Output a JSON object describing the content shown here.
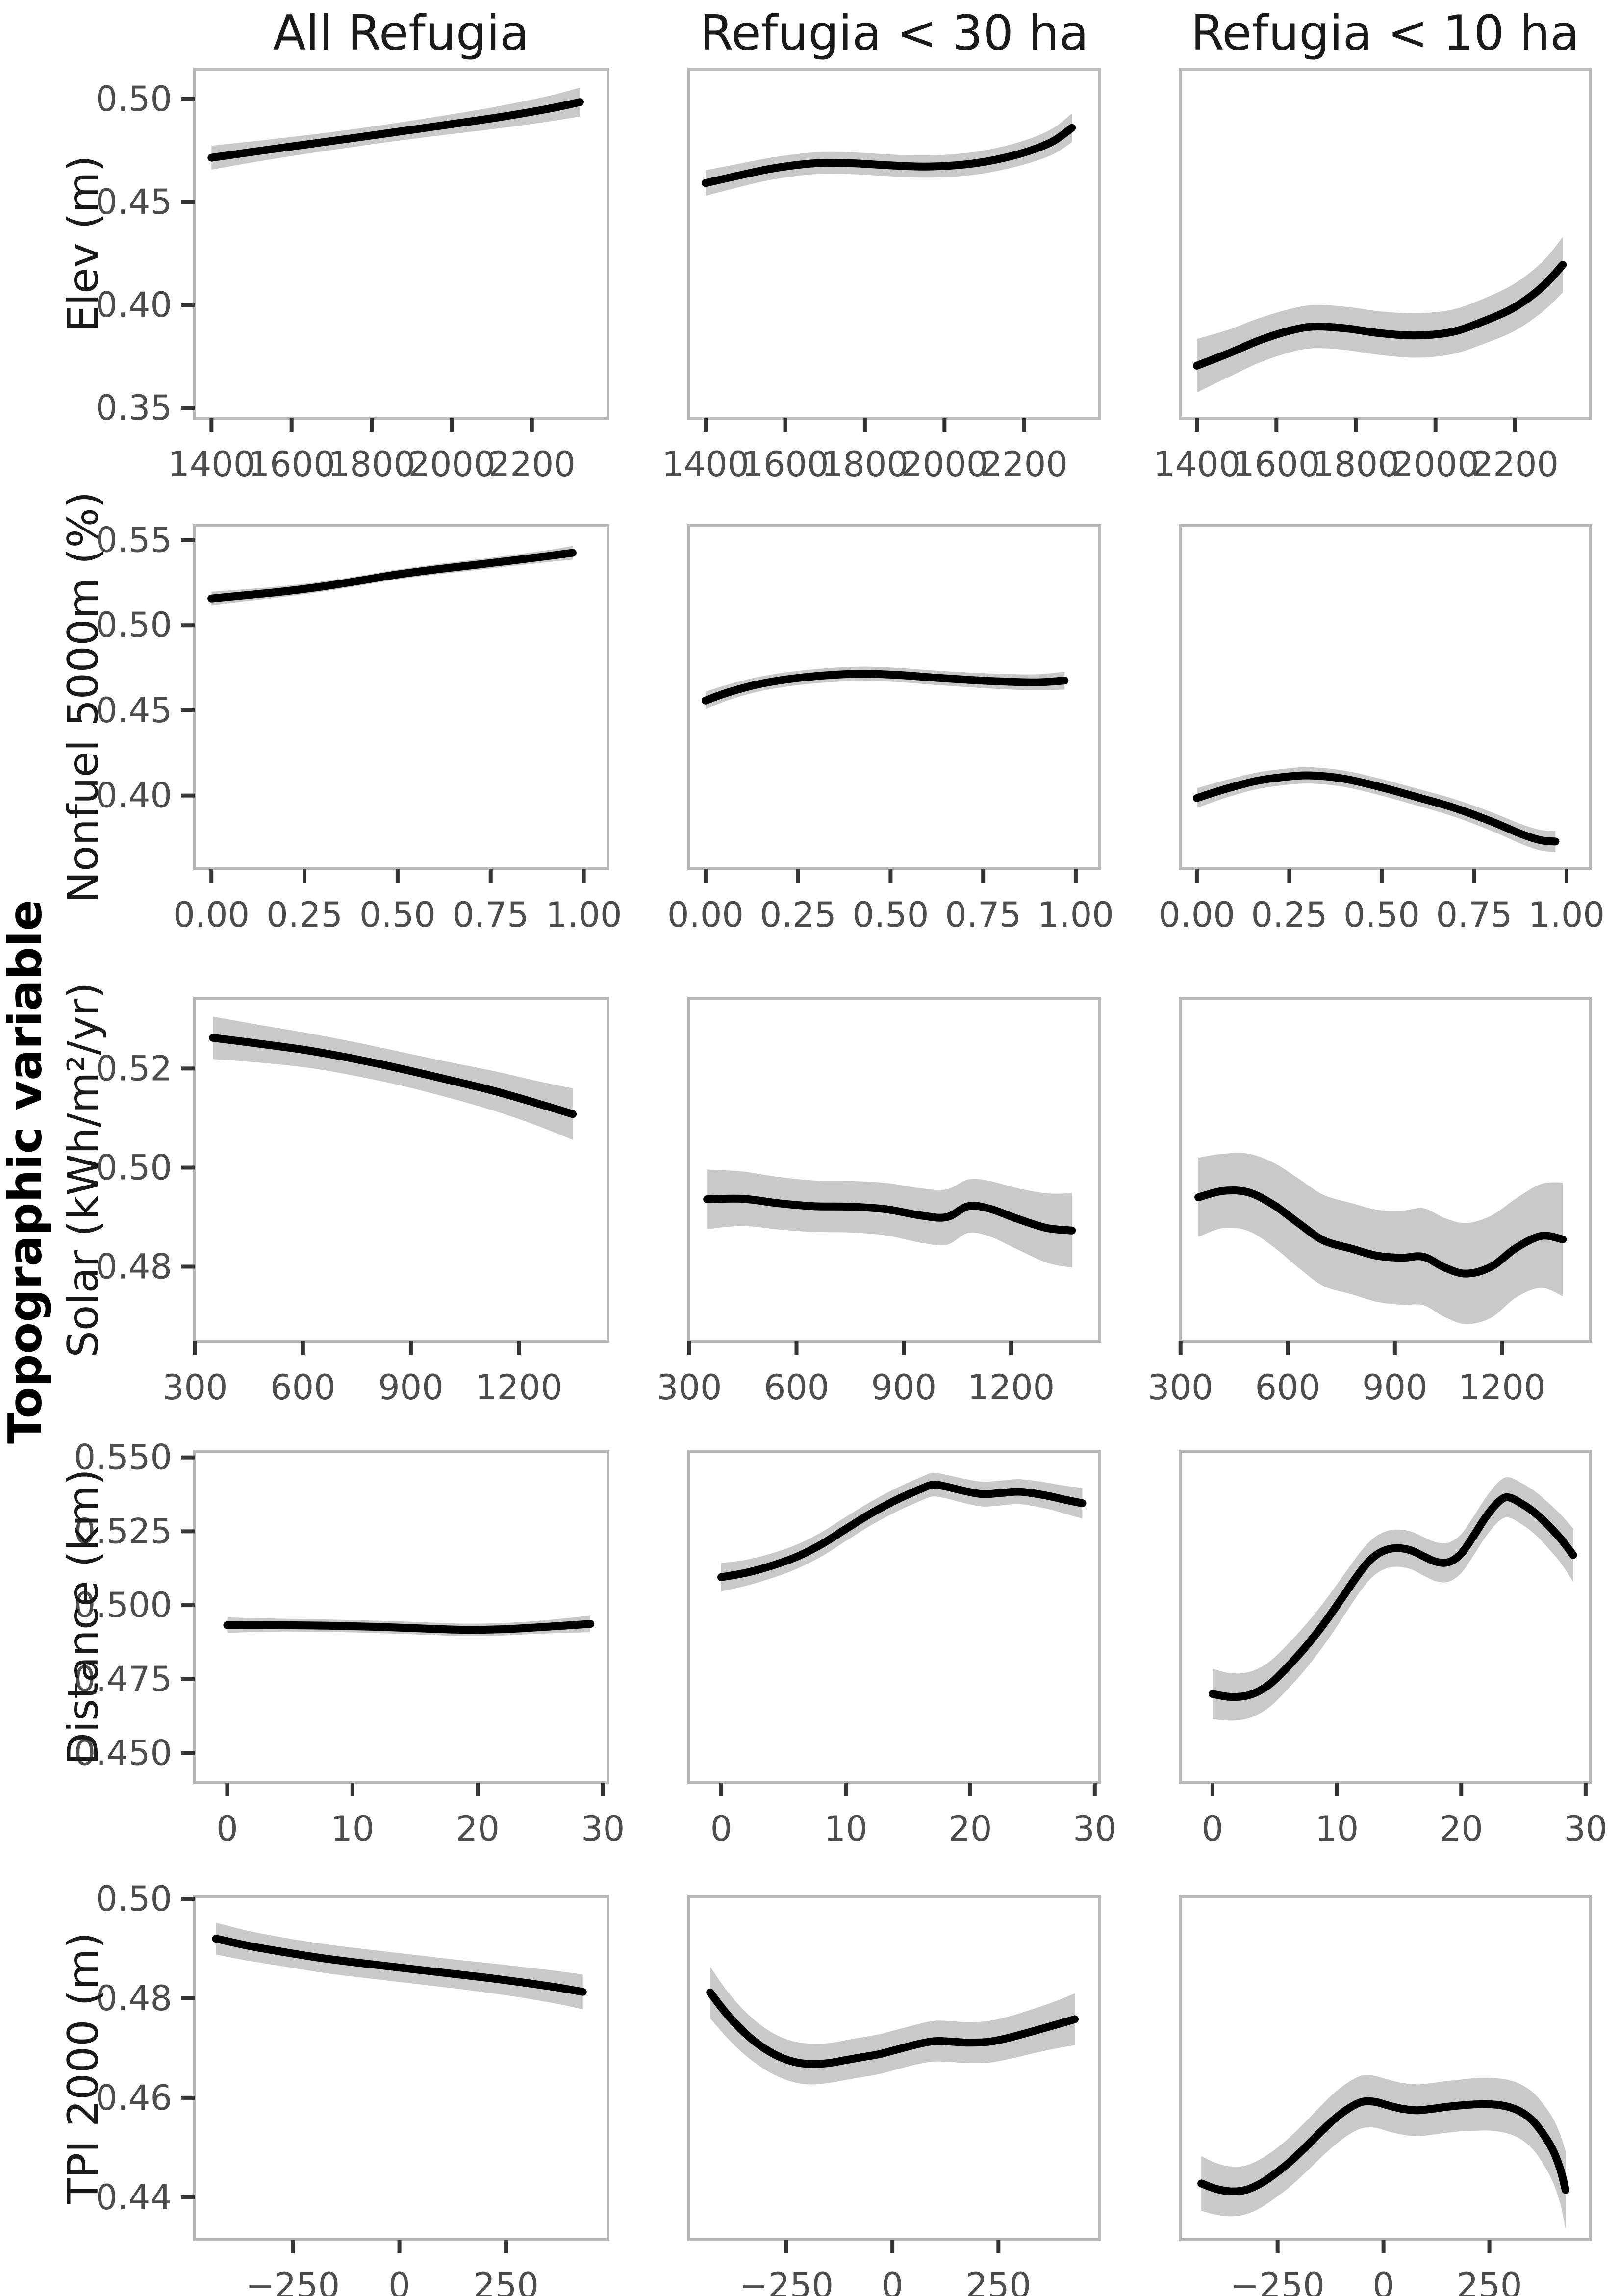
{
  "figure": {
    "col_titles": [
      "All Refugia",
      "Refugia < 30 ha",
      "Refugia < 10 ha"
    ],
    "outer_ylabel": "Topographic variable",
    "colors": {
      "line": "#000000",
      "ci_band": "#c9c9c9",
      "panel_border": "#b8b8b8",
      "tick_mark": "#333333",
      "tick_label": "#4d4d4d",
      "title": "#1a1a1a",
      "background": "#ffffff"
    }
  },
  "chart_data": [
    {
      "type": "line",
      "ylabel": "Elev (m)",
      "ylim": [
        0.345,
        0.5145
      ],
      "ytick_values": [
        0.35,
        0.4,
        0.45,
        0.5
      ],
      "ytick_labels": [
        "0.35",
        "0.40",
        "0.45",
        "0.50"
      ],
      "xlim": [
        1358,
        2390
      ],
      "xtick_values": [
        1400,
        1600,
        1800,
        2000,
        2200
      ],
      "xtick_labels": [
        "1400",
        "1600",
        "1800",
        "2000",
        "2200"
      ],
      "panels": [
        {
          "column": "All Refugia",
          "x": [
            1400,
            1520,
            1640,
            1760,
            1880,
            2000,
            2120,
            2240,
            2320
          ],
          "y": [
            0.4715,
            0.4748,
            0.478,
            0.4812,
            0.4845,
            0.4878,
            0.4912,
            0.4952,
            0.4985
          ],
          "ci": [
            0.0058,
            0.005,
            0.0045,
            0.0043,
            0.0044,
            0.0048,
            0.0054,
            0.0062,
            0.007
          ]
        },
        {
          "column": "Refugia < 30 ha",
          "x": [
            1400,
            1480,
            1560,
            1640,
            1700,
            1780,
            1860,
            1950,
            2040,
            2120,
            2200,
            2270,
            2320
          ],
          "y": [
            0.4592,
            0.4627,
            0.466,
            0.4682,
            0.469,
            0.4687,
            0.4678,
            0.4672,
            0.468,
            0.4702,
            0.474,
            0.4792,
            0.486
          ],
          "ci": [
            0.0062,
            0.0057,
            0.0054,
            0.0053,
            0.0053,
            0.0053,
            0.0053,
            0.0054,
            0.0055,
            0.0056,
            0.0058,
            0.0063,
            0.007
          ]
        },
        {
          "column": "Refugia < 10 ha",
          "x": [
            1400,
            1480,
            1560,
            1640,
            1700,
            1780,
            1860,
            1950,
            2040,
            2120,
            2200,
            2270,
            2320
          ],
          "y": [
            0.3705,
            0.3765,
            0.383,
            0.3878,
            0.3895,
            0.3885,
            0.3863,
            0.3852,
            0.3868,
            0.392,
            0.399,
            0.409,
            0.4195
          ],
          "ci": [
            0.013,
            0.0115,
            0.0108,
            0.0105,
            0.0105,
            0.0105,
            0.0106,
            0.0108,
            0.0108,
            0.011,
            0.0115,
            0.0122,
            0.0135
          ]
        }
      ]
    },
    {
      "type": "line",
      "ylabel": "Nonfuel 5000m (%)",
      "ylim": [
        0.357,
        0.5585
      ],
      "ytick_values": [
        0.4,
        0.45,
        0.5,
        0.55
      ],
      "ytick_labels": [
        "0.40",
        "0.45",
        "0.50",
        "0.55"
      ],
      "xlim": [
        -0.045,
        1.065
      ],
      "xtick_values": [
        0.0,
        0.25,
        0.5,
        0.75,
        1.0
      ],
      "xtick_labels": [
        "0.00",
        "0.25",
        "0.50",
        "0.75",
        "1.00"
      ],
      "panels": [
        {
          "column": "All Refugia",
          "x": [
            0,
            0.1,
            0.2,
            0.3,
            0.4,
            0.5,
            0.6,
            0.7,
            0.8,
            0.9,
            0.97
          ],
          "y": [
            0.5157,
            0.5178,
            0.52,
            0.5228,
            0.5262,
            0.5298,
            0.5327,
            0.5352,
            0.5378,
            0.5405,
            0.5425
          ],
          "ci": [
            0.004,
            0.0035,
            0.0032,
            0.003,
            0.0029,
            0.0029,
            0.003,
            0.0031,
            0.0032,
            0.0035,
            0.004
          ]
        },
        {
          "column": "Refugia < 30 ha",
          "x": [
            0,
            0.06,
            0.14,
            0.22,
            0.32,
            0.42,
            0.52,
            0.62,
            0.72,
            0.82,
            0.9,
            0.97
          ],
          "y": [
            0.4558,
            0.4605,
            0.4652,
            0.4682,
            0.4705,
            0.4715,
            0.4708,
            0.4692,
            0.4678,
            0.4668,
            0.4665,
            0.4675
          ],
          "ci": [
            0.0052,
            0.0046,
            0.0043,
            0.0042,
            0.0042,
            0.0042,
            0.0042,
            0.0042,
            0.0043,
            0.0045,
            0.0047,
            0.0052
          ]
        },
        {
          "column": "Refugia < 10 ha",
          "x": [
            0,
            0.08,
            0.16,
            0.24,
            0.31,
            0.4,
            0.5,
            0.6,
            0.7,
            0.8,
            0.88,
            0.93,
            0.97
          ],
          "y": [
            0.3985,
            0.404,
            0.4085,
            0.411,
            0.4118,
            0.4098,
            0.4048,
            0.3988,
            0.3925,
            0.3845,
            0.3772,
            0.3738,
            0.373
          ],
          "ci": [
            0.0058,
            0.0052,
            0.0049,
            0.0048,
            0.0048,
            0.0048,
            0.0049,
            0.005,
            0.0052,
            0.0055,
            0.0058,
            0.006,
            0.0062
          ]
        }
      ]
    },
    {
      "type": "line",
      "ylabel": "Solar (kWh/m²/yr)",
      "ylim": [
        0.4649,
        0.5342
      ],
      "ytick_values": [
        0.48,
        0.5,
        0.52
      ],
      "ytick_labels": [
        "0.48",
        "0.50",
        "0.52"
      ],
      "xlim": [
        299,
        1448
      ],
      "xtick_values": [
        300,
        600,
        900,
        1200
      ],
      "xtick_labels": [
        "300",
        "600",
        "900",
        "1200"
      ],
      "panels": [
        {
          "column": "All Refugia",
          "x": [
            350,
            480,
            610,
            740,
            870,
            1000,
            1130,
            1250,
            1350
          ],
          "y": [
            0.5262,
            0.525,
            0.5237,
            0.522,
            0.52,
            0.5178,
            0.5155,
            0.513,
            0.5108
          ],
          "ci": [
            0.0043,
            0.0038,
            0.0035,
            0.0034,
            0.0034,
            0.0036,
            0.004,
            0.0045,
            0.0052
          ]
        },
        {
          "column": "Refugia < 30 ha",
          "x": [
            350,
            450,
            550,
            650,
            750,
            850,
            950,
            1020,
            1080,
            1140,
            1220,
            1300,
            1370
          ],
          "y": [
            0.4936,
            0.4937,
            0.4928,
            0.4922,
            0.4921,
            0.4916,
            0.4903,
            0.49,
            0.4922,
            0.4917,
            0.4896,
            0.4878,
            0.4873
          ],
          "ci": [
            0.006,
            0.0055,
            0.0053,
            0.0052,
            0.0052,
            0.0053,
            0.0055,
            0.0056,
            0.0054,
            0.0056,
            0.0062,
            0.007,
            0.0075
          ]
        },
        {
          "column": "Refugia < 10 ha",
          "x": [
            350,
            420,
            490,
            560,
            630,
            700,
            780,
            850,
            920,
            980,
            1040,
            1100,
            1170,
            1240,
            1310,
            1370
          ],
          "y": [
            0.494,
            0.4953,
            0.495,
            0.4925,
            0.4888,
            0.4853,
            0.4836,
            0.4822,
            0.4818,
            0.482,
            0.4798,
            0.4786,
            0.48,
            0.4838,
            0.4862,
            0.4855
          ],
          "ci": [
            0.008,
            0.0075,
            0.0078,
            0.0085,
            0.009,
            0.0092,
            0.0092,
            0.0093,
            0.0095,
            0.0098,
            0.01,
            0.0102,
            0.0103,
            0.01,
            0.0105,
            0.0115
          ]
        }
      ]
    },
    {
      "type": "line",
      "ylabel": "Distance (km)",
      "ylim": [
        0.44,
        0.5521
      ],
      "ytick_values": [
        0.45,
        0.475,
        0.5,
        0.525,
        0.55
      ],
      "ytick_labels": [
        "0.450",
        "0.475",
        "0.500",
        "0.525",
        "0.550"
      ],
      "xlim": [
        -2.6,
        30.4
      ],
      "xtick_values": [
        0,
        10,
        20,
        30
      ],
      "xtick_labels": [
        "0",
        "10",
        "20",
        "30"
      ],
      "panels": [
        {
          "column": "All Refugia",
          "x": [
            0,
            4,
            8,
            12,
            16,
            19,
            22,
            25,
            29
          ],
          "y": [
            0.4933,
            0.4933,
            0.4931,
            0.4927,
            0.4921,
            0.4917,
            0.4919,
            0.4926,
            0.4937
          ],
          "ci": [
            0.0026,
            0.0022,
            0.0021,
            0.0021,
            0.0021,
            0.0021,
            0.0021,
            0.0022,
            0.0028
          ]
        },
        {
          "column": "Refugia < 30 ha",
          "x": [
            0,
            2,
            4,
            6,
            8,
            10,
            12,
            14,
            16,
            17,
            18,
            19.5,
            21,
            22.5,
            24,
            26,
            27.5,
            29
          ],
          "y": [
            0.5095,
            0.511,
            0.5133,
            0.5163,
            0.5205,
            0.5258,
            0.531,
            0.5355,
            0.5393,
            0.5408,
            0.5402,
            0.5387,
            0.5376,
            0.538,
            0.5384,
            0.5372,
            0.5358,
            0.5345
          ],
          "ci": [
            0.0048,
            0.0044,
            0.0042,
            0.0041,
            0.0041,
            0.0041,
            0.004,
            0.004,
            0.004,
            0.004,
            0.004,
            0.0041,
            0.0042,
            0.0042,
            0.0042,
            0.0044,
            0.0047,
            0.0052
          ]
        },
        {
          "column": "Refugia < 10 ha",
          "x": [
            0,
            1.5,
            3,
            4.5,
            6,
            7.5,
            9,
            10.5,
            12,
            13,
            14,
            15,
            16,
            17,
            18,
            19,
            20,
            21,
            22,
            23,
            23.8,
            25,
            26,
            27,
            28,
            29
          ],
          "y": [
            0.47,
            0.469,
            0.4697,
            0.473,
            0.479,
            0.486,
            0.494,
            0.503,
            0.512,
            0.5165,
            0.5188,
            0.5193,
            0.5185,
            0.5165,
            0.5147,
            0.5146,
            0.5175,
            0.5235,
            0.53,
            0.535,
            0.5365,
            0.534,
            0.531,
            0.527,
            0.5225,
            0.517
          ],
          "ci": [
            0.0085,
            0.008,
            0.0078,
            0.0077,
            0.0076,
            0.0075,
            0.0073,
            0.007,
            0.0066,
            0.0064,
            0.0063,
            0.0063,
            0.0064,
            0.0065,
            0.0066,
            0.0066,
            0.0066,
            0.0066,
            0.0066,
            0.0067,
            0.0068,
            0.007,
            0.0073,
            0.0077,
            0.0082,
            0.009
          ]
        }
      ]
    },
    {
      "type": "line",
      "ylabel": "TPI 2000 (m)",
      "ylim": [
        0.4315,
        0.5005
      ],
      "ytick_values": [
        0.44,
        0.46,
        0.48,
        0.5
      ],
      "ytick_labels": [
        "0.44",
        "0.46",
        "0.48",
        "0.50"
      ],
      "xlim": [
        -480,
        489
      ],
      "xtick_values": [
        -250,
        0,
        250
      ],
      "xtick_labels": [
        "−250",
        "0",
        "250"
      ],
      "panels": [
        {
          "column": "All Refugia",
          "x": [
            -430,
            -350,
            -270,
            -190,
            -110,
            -30,
            50,
            130,
            210,
            290,
            370,
            430
          ],
          "y": [
            0.492,
            0.4905,
            0.4893,
            0.4882,
            0.4873,
            0.4865,
            0.4857,
            0.4849,
            0.4841,
            0.4832,
            0.4822,
            0.4813
          ],
          "ci": [
            0.0032,
            0.003,
            0.0029,
            0.0029,
            0.0029,
            0.0029,
            0.0029,
            0.0029,
            0.003,
            0.0031,
            0.0033,
            0.0035
          ]
        },
        {
          "column": "Refugia < 30 ha",
          "x": [
            -430,
            -390,
            -350,
            -310,
            -270,
            -230,
            -190,
            -150,
            -110,
            -70,
            -30,
            10,
            60,
            100,
            140,
            180,
            230,
            280,
            340,
            390,
            430
          ],
          "y": [
            0.4812,
            0.4768,
            0.4732,
            0.4704,
            0.4684,
            0.4672,
            0.4668,
            0.467,
            0.4676,
            0.4682,
            0.4688,
            0.4697,
            0.4708,
            0.4714,
            0.4713,
            0.4711,
            0.4713,
            0.4722,
            0.4736,
            0.4748,
            0.4758
          ],
          "ci": [
            0.0052,
            0.0047,
            0.0044,
            0.0042,
            0.0041,
            0.0041,
            0.0041,
            0.004,
            0.004,
            0.004,
            0.004,
            0.004,
            0.004,
            0.0041,
            0.0041,
            0.0041,
            0.0042,
            0.0043,
            0.0045,
            0.0048,
            0.0052
          ]
        },
        {
          "column": "Refugia < 10 ha",
          "x": [
            -430,
            -395,
            -360,
            -325,
            -290,
            -255,
            -220,
            -185,
            -150,
            -115,
            -80,
            -50,
            -20,
            10,
            45,
            80,
            115,
            150,
            185,
            220,
            255,
            290,
            320,
            350,
            375,
            400,
            418,
            430
          ],
          "y": [
            0.4428,
            0.4417,
            0.4412,
            0.4415,
            0.4428,
            0.4448,
            0.4472,
            0.45,
            0.453,
            0.4558,
            0.458,
            0.4592,
            0.4592,
            0.4585,
            0.4578,
            0.4575,
            0.4578,
            0.4582,
            0.4585,
            0.4587,
            0.4587,
            0.4583,
            0.4574,
            0.4556,
            0.453,
            0.4495,
            0.4455,
            0.4415
          ],
          "ci": [
            0.0055,
            0.0052,
            0.005,
            0.0049,
            0.0049,
            0.0049,
            0.005,
            0.0051,
            0.0052,
            0.0053,
            0.0053,
            0.0053,
            0.0052,
            0.0052,
            0.0052,
            0.0052,
            0.0052,
            0.0052,
            0.0052,
            0.0053,
            0.0053,
            0.0054,
            0.0055,
            0.0057,
            0.006,
            0.0064,
            0.007,
            0.0078
          ]
        }
      ]
    }
  ]
}
